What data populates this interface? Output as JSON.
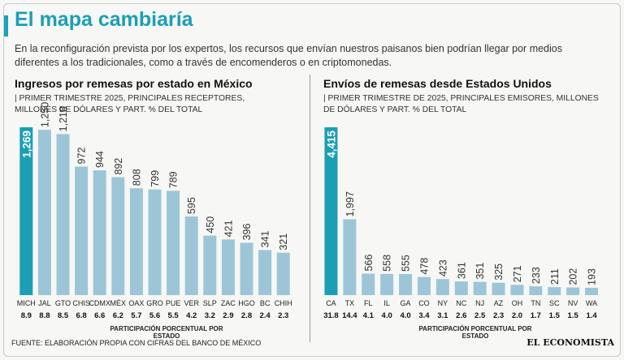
{
  "header": {
    "title": "El mapa cambiaría",
    "intro": "En la reconfiguración prevista por los expertos, los recursos que envían nuestros paisanos bien podrían llegar por medios diferentes a los tradicionales, como a través de encomenderos o en criptomonedas."
  },
  "footer": {
    "source": "FUENTE: ELABORACIÓN PROPIA CON CIFRAS DEL BANCO DE MÉXICO",
    "logo": "EL ECONOMISTA"
  },
  "colors": {
    "highlight": "#1a9fb5",
    "bar": "#9cc6d8",
    "title": "#1a9fb5"
  },
  "chart_data": [
    {
      "type": "bar",
      "title": "Ingresos por remesas por estado en México",
      "subtitle": "| PRIMER TRIMESTRE 2025, PRINCIPALES RECEPTORES, MILLONES DE DÓLARES Y PART. % DEL TOTAL",
      "xlabel": "PARTICIPACIÓN PORCENTUAL POR ESTADO",
      "categories": [
        "MICH",
        "JAL",
        "GTO",
        "CHIS",
        "CDMX",
        "MÉX",
        "OAX",
        "GRO",
        "PUE",
        "VER",
        "SLP",
        "ZAC",
        "HGO",
        "BC",
        "CHIH"
      ],
      "values": [
        1269,
        1250,
        1218,
        972,
        944,
        892,
        808,
        799,
        789,
        595,
        450,
        421,
        396,
        341,
        321
      ],
      "value_labels": [
        "1,269",
        "1,250",
        "1,218",
        "972",
        "944",
        "892",
        "808",
        "799",
        "789",
        "595",
        "450",
        "421",
        "396",
        "341",
        "321"
      ],
      "shares": [
        "8.9",
        "8.8",
        "8.5",
        "6.8",
        "6.6",
        "6.2",
        "5.7",
        "5.6",
        "5.5",
        "4.2",
        "3.2",
        "2.9",
        "2.8",
        "2.4",
        "2.3"
      ],
      "highlight_index": 0,
      "ylim": [
        0,
        1269
      ]
    },
    {
      "type": "bar",
      "title": "Envíos de remesas desde Estados Unidos",
      "subtitle": "| PRIMER TRIMESTRE DE 2025, PRINCIPALES EMISORES, MILLONES DE DÓLARES Y PART. % DEL TOTAL",
      "xlabel": "PARTICIPACIÓN PORCENTUAL POR ESTADO",
      "categories": [
        "CA",
        "TX",
        "FL",
        "IL",
        "GA",
        "CO",
        "NY",
        "NC",
        "NJ",
        "AZ",
        "OH",
        "TN",
        "SC",
        "NV",
        "WA"
      ],
      "values": [
        4415,
        1997,
        566,
        558,
        555,
        478,
        423,
        361,
        351,
        325,
        271,
        233,
        211,
        202,
        193
      ],
      "value_labels": [
        "4,415",
        "1,997",
        "566",
        "558",
        "555",
        "478",
        "423",
        "361",
        "351",
        "325",
        "271",
        "233",
        "211",
        "202",
        "193"
      ],
      "shares": [
        "31.8",
        "14.4",
        "4.1",
        "4.0",
        "4.0",
        "3.4",
        "3.1",
        "2.6",
        "2.5",
        "2.3",
        "2.0",
        "1.7",
        "1.5",
        "1.5",
        "1.4"
      ],
      "highlight_index": 0,
      "ylim": [
        0,
        4415
      ]
    }
  ]
}
